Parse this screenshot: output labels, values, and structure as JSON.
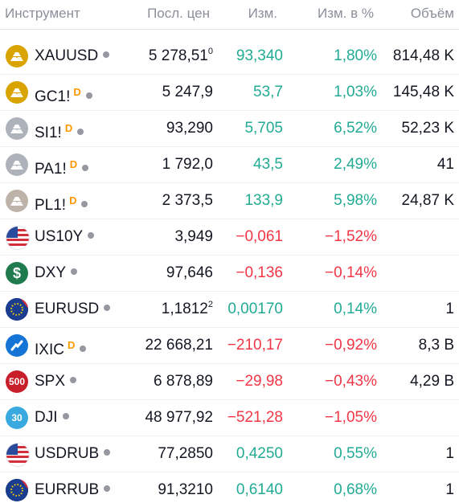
{
  "header": {
    "instrument": "Инструмент",
    "last": "Посл. цен",
    "change": "Изм.",
    "change_pct": "Изм. в %",
    "volume": "Объём"
  },
  "colors": {
    "positive": "#22ab94",
    "negative": "#f23645",
    "badge_d": "#ff9800",
    "status_dot": "#9598a1"
  },
  "rows": [
    {
      "symbol": "XAUUSD",
      "badge": "",
      "icon": "gold-bars-icon",
      "last": "5 278,51",
      "last_sup": "0",
      "change": "93,340",
      "change_pct": "1,80%",
      "volume": "814,48 K",
      "trend": "pos"
    },
    {
      "symbol": "GC1!",
      "badge": "D",
      "icon": "gold-bars-icon",
      "last": "5 247,9",
      "last_sup": "",
      "change": "53,7",
      "change_pct": "1,03%",
      "volume": "145,48 K",
      "trend": "pos"
    },
    {
      "symbol": "SI1!",
      "badge": "D",
      "icon": "silver-bars-icon",
      "last": "93,290",
      "last_sup": "",
      "change": "5,705",
      "change_pct": "6,52%",
      "volume": "52,23 K",
      "trend": "pos"
    },
    {
      "symbol": "PA1!",
      "badge": "D",
      "icon": "silver-bars-icon",
      "last": "1 792,0",
      "last_sup": "",
      "change": "43,5",
      "change_pct": "2,49%",
      "volume": "41",
      "trend": "pos"
    },
    {
      "symbol": "PL1!",
      "badge": "D",
      "icon": "platinum-bars-icon",
      "last": "2 373,5",
      "last_sup": "",
      "change": "133,9",
      "change_pct": "5,98%",
      "volume": "24,87 K",
      "trend": "pos"
    },
    {
      "symbol": "US10Y",
      "badge": "",
      "icon": "us-flag-icon",
      "last": "3,949",
      "last_sup": "",
      "change": "−0,061",
      "change_pct": "−1,52%",
      "volume": "",
      "trend": "neg"
    },
    {
      "symbol": "DXY",
      "badge": "",
      "icon": "dollar-icon",
      "last": "97,646",
      "last_sup": "",
      "change": "−0,136",
      "change_pct": "−0,14%",
      "volume": "",
      "trend": "neg"
    },
    {
      "symbol": "EURUSD",
      "badge": "",
      "icon": "eu-us-flags-icon",
      "last": "1,1812",
      "last_sup": "2",
      "change": "0,00170",
      "change_pct": "0,14%",
      "volume": "1",
      "trend": "pos"
    },
    {
      "symbol": "IXIC",
      "badge": "D",
      "icon": "nasdaq-icon",
      "last": "22 668,21",
      "last_sup": "",
      "change": "−210,17",
      "change_pct": "−0,92%",
      "volume": "8,3 B",
      "trend": "neg"
    },
    {
      "symbol": "SPX",
      "badge": "",
      "icon": "spx-500-icon",
      "icon_text": "500",
      "last": "6 878,89",
      "last_sup": "",
      "change": "−29,98",
      "change_pct": "−0,43%",
      "volume": "4,29 B",
      "trend": "neg"
    },
    {
      "symbol": "DJI",
      "badge": "",
      "icon": "dji-30-icon",
      "icon_text": "30",
      "last": "48 977,92",
      "last_sup": "",
      "change": "−521,28",
      "change_pct": "−1,05%",
      "volume": "",
      "trend": "neg"
    },
    {
      "symbol": "USDRUB",
      "badge": "",
      "icon": "us-ru-flags-icon",
      "last": "77,2850",
      "last_sup": "",
      "change": "0,4250",
      "change_pct": "0,55%",
      "volume": "1",
      "trend": "pos"
    },
    {
      "symbol": "EURRUB",
      "badge": "",
      "icon": "eu-ru-flags-icon",
      "last": "91,3210",
      "last_sup": "",
      "change": "0,6140",
      "change_pct": "0,68%",
      "volume": "1",
      "trend": "pos"
    }
  ]
}
